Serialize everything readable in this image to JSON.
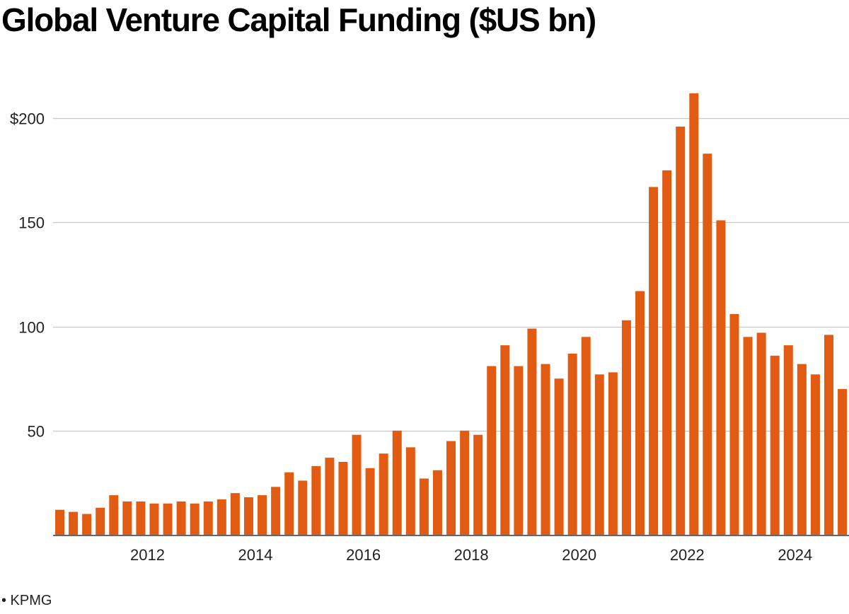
{
  "chart_data": {
    "type": "bar",
    "title": "Global Venture Capital Funding ($US bn)",
    "xlabel": "",
    "ylabel": "",
    "x_tick_labels": [
      "2012",
      "2014",
      "2016",
      "2018",
      "2020",
      "2022",
      "2024"
    ],
    "y_tick_labels": [
      "$200",
      "150",
      "100",
      "50"
    ],
    "y_ticks": [
      200,
      150,
      100,
      50
    ],
    "ylim": [
      0,
      220
    ],
    "grid": true,
    "legend": "none",
    "bar_color": "#E25B12",
    "categories": [
      "2010 Q2",
      "2010 Q3",
      "2010 Q4",
      "2011 Q1",
      "2011 Q2",
      "2011 Q3",
      "2011 Q4",
      "2012 Q1",
      "2012 Q2",
      "2012 Q3",
      "2012 Q4",
      "2013 Q1",
      "2013 Q2",
      "2013 Q3",
      "2013 Q4",
      "2014 Q1",
      "2014 Q2",
      "2014 Q3",
      "2014 Q4",
      "2015 Q1",
      "2015 Q2",
      "2015 Q3",
      "2015 Q4",
      "2016 Q1",
      "2016 Q2",
      "2016 Q3",
      "2016 Q4",
      "2017 Q1",
      "2017 Q2",
      "2017 Q3",
      "2017 Q4",
      "2018 Q1",
      "2018 Q2",
      "2018 Q3",
      "2018 Q4",
      "2019 Q1",
      "2019 Q2",
      "2019 Q3",
      "2019 Q4",
      "2020 Q1",
      "2020 Q2",
      "2020 Q3",
      "2020 Q4",
      "2021 Q1",
      "2021 Q2",
      "2021 Q3",
      "2021 Q4",
      "2022 Q1",
      "2022 Q2",
      "2022 Q3",
      "2022 Q4",
      "2023 Q1",
      "2023 Q2",
      "2023 Q3",
      "2023 Q4",
      "2024 Q1",
      "2024 Q2",
      "2024 Q3",
      "2024 Q4"
    ],
    "values": [
      12,
      11,
      10,
      13,
      19,
      16,
      16,
      15,
      15,
      16,
      15,
      16,
      17,
      20,
      18,
      19,
      23,
      30,
      26,
      33,
      37,
      35,
      48,
      32,
      39,
      50,
      42,
      27,
      31,
      45,
      50,
      48,
      81,
      91,
      81,
      99,
      82,
      75,
      87,
      95,
      77,
      78,
      103,
      117,
      167,
      175,
      196,
      212,
      183,
      151,
      106,
      95,
      97,
      86,
      91,
      82,
      77,
      96,
      70
    ]
  },
  "source": "• KPMG"
}
